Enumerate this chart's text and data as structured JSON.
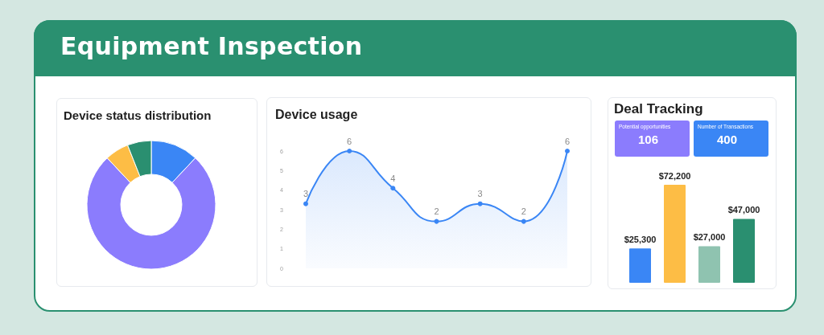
{
  "chart_data": [
    {
      "type": "other",
      "title": "Equipment Inspection"
    },
    {
      "type": "donut",
      "title": "Device status distribution",
      "categories": [
        null,
        null,
        null,
        null
      ],
      "values": [
        12,
        76,
        6,
        6
      ],
      "colors": [
        "#3a86f5",
        "#8b7cfd",
        "#fdbd45",
        "#2a8f70"
      ]
    },
    {
      "type": "area",
      "title": "Device usage",
      "categories": [
        null,
        null,
        null,
        null,
        null,
        null,
        null
      ],
      "values": [
        3.3,
        6,
        4.1,
        2.4,
        3.3,
        2.4,
        6
      ],
      "value_labels": [
        "3",
        "6",
        "4",
        "2",
        "3",
        "2",
        "6"
      ],
      "color": "#3a86f5",
      "ylim": [
        0,
        6
      ],
      "yticks": [
        0,
        1,
        2,
        3,
        4,
        5,
        6
      ],
      "tick_labels": "y",
      "marker": "circle"
    },
    {
      "type": "other",
      "title": "Deal Tracking",
      "categories": [
        "Potential opportunities",
        "Number of Transactions"
      ],
      "values": [
        106,
        400
      ],
      "colors": [
        "#8b7cfd",
        "#3a86f5"
      ],
      "data_labels": true
    },
    {
      "type": "bar",
      "categories": [
        null,
        null,
        null,
        null
      ],
      "values": [
        25300,
        72200,
        27000,
        47000
      ],
      "value_labels": [
        "$25,300",
        "$72,200",
        "$27,000",
        "$47,000"
      ],
      "colors": [
        "#3a86f5",
        "#fdbd45",
        "#8fc3b0",
        "#2a8f70"
      ]
    }
  ]
}
